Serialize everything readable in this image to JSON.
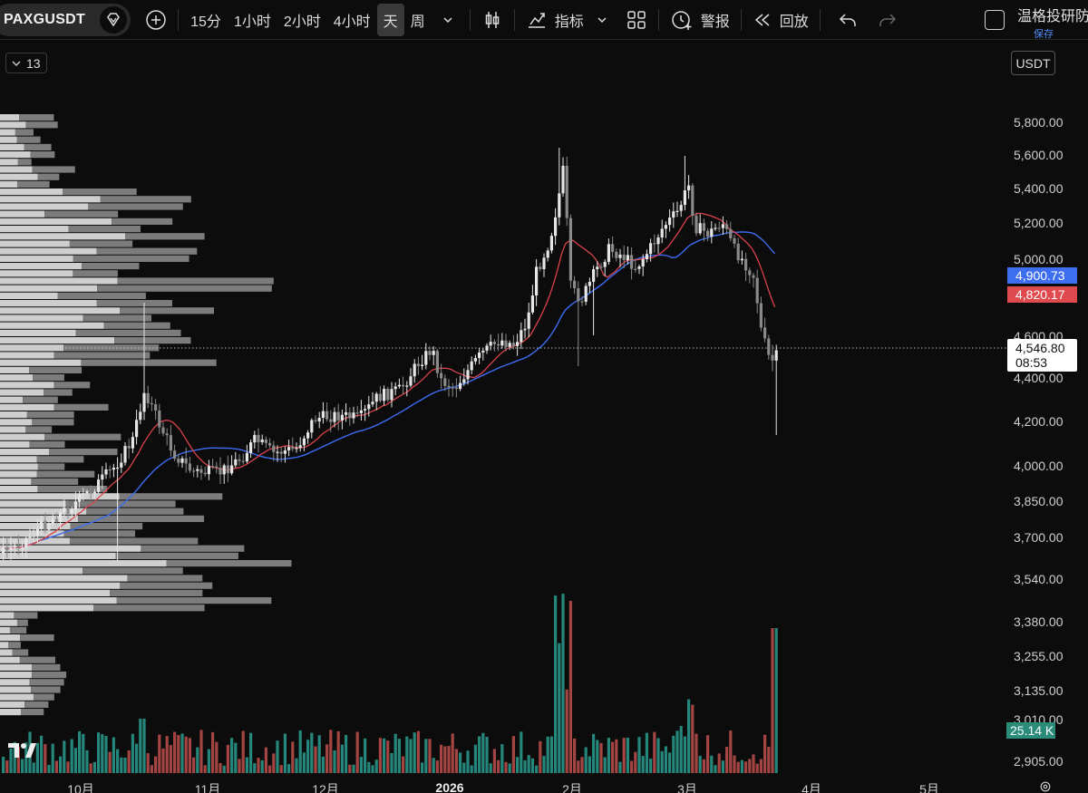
{
  "toolbar": {
    "symbol": "PAXGUSDT",
    "timeframes": [
      "15分",
      "1小时",
      "2小时",
      "4小时",
      "天",
      "周"
    ],
    "active_timeframe": "天",
    "indicators_label": "指标",
    "alert_label": "警报",
    "replay_label": "回放",
    "brand_name": "温格投研防",
    "save_label": "保存"
  },
  "chart_header": {
    "indicator_count": "13",
    "currency": "USDT"
  },
  "price_axis": {
    "labels": [
      "5,800.00",
      "5,600.00",
      "5,400.00",
      "5,200.00",
      "5,000.00",
      "4,600.00",
      "4,400.00",
      "4,200.00",
      "4,000.00",
      "3,850.00",
      "3,700.00",
      "3,540.00",
      "3,380.00",
      "3,255.00",
      "3,135.00",
      "3,010.00",
      "2,905.00"
    ]
  },
  "time_axis": {
    "labels": [
      "10月",
      "11月",
      "12月",
      "2026",
      "2月",
      "3月",
      "4月",
      "5月"
    ]
  },
  "tags": {
    "ma_slow": "4,900.73",
    "ma_fast": "4,820.17",
    "last_price": "4,546.80",
    "countdown": "08:53",
    "volume": "25.14 K"
  },
  "colors": {
    "background": "#0c0c0c",
    "up": "#e6e6e6",
    "down": "#8a8a8a",
    "ma_fast": "#d9434b",
    "ma_slow": "#3d6df0",
    "vol_up": "#2a9d8f",
    "vol_down": "#c0504d",
    "accent": "#4f8ef7"
  },
  "chart_data": {
    "type": "candlestick",
    "symbol": "PAXGUSDT",
    "interval": "1D",
    "ylim": [
      2905,
      5800
    ],
    "last_price": 4546.8,
    "ma_fast_last": 4820.17,
    "ma_slow_last": 4900.73
  }
}
